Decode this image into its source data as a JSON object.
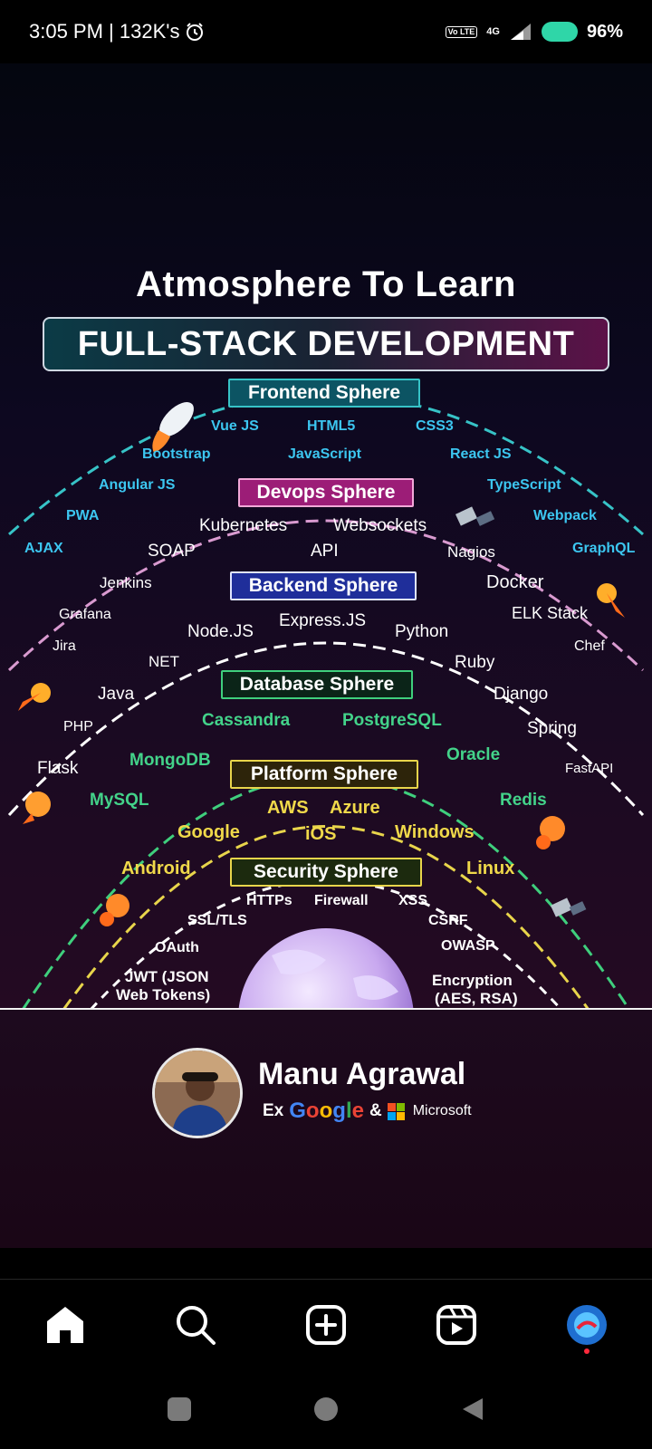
{
  "status_bar": {
    "time": "3:05 PM | 132K's",
    "volte": "Vo LTE",
    "network": "4G",
    "battery": "96%"
  },
  "post": {
    "title_line1": "Atmosphere To Learn",
    "title_line2": "FULL-STACK DEVELOPMENT",
    "spheres": {
      "frontend": {
        "label": "Frontend Sphere",
        "items": [
          "Vue JS",
          "HTML5",
          "CSS3",
          "Bootstrap",
          "JavaScript",
          "React JS",
          "Angular JS",
          "TypeScript",
          "PWA",
          "Webpack",
          "AJAX",
          "GraphQL"
        ]
      },
      "devops": {
        "label": "Devops Sphere",
        "items": [
          "Kubernetes",
          "Websockets",
          "SOAP",
          "API",
          "Nagios",
          "Jenkins",
          "Docker",
          "Grafana",
          "ELK Stack",
          "Jira",
          "Chef"
        ]
      },
      "backend": {
        "label": "Backend Sphere",
        "items": [
          "Node.JS",
          "Express.JS",
          "Python",
          "NET",
          "Ruby",
          "Java",
          "Django",
          "PHP",
          "Spring",
          "Flask",
          "FastAPI"
        ]
      },
      "database": {
        "label": "Database Sphere",
        "items": [
          "Cassandra",
          "PostgreSQL",
          "MongoDB",
          "Oracle",
          "MySQL",
          "Redis"
        ]
      },
      "platform": {
        "label": "Platform Sphere",
        "items": [
          "AWS",
          "Azure",
          "Google",
          "iOS",
          "Windows",
          "Android",
          "Linux"
        ]
      },
      "security": {
        "label": "Security Sphere",
        "items": [
          "HTTPs",
          "Firewall",
          "XSS",
          "SSL/TLS",
          "CSRF",
          "OAuth",
          "OWASP",
          "JWT (JSON",
          "Web Tokens)",
          "Encryption",
          "(AES, RSA)"
        ]
      }
    },
    "author": {
      "name": "Manu Agrawal",
      "prefix": "Ex",
      "company1": "Google",
      "amp": "&",
      "company2": "Microsoft"
    }
  },
  "bottom_nav": {
    "items": [
      "home-icon",
      "search-icon",
      "create-icon",
      "reels-icon",
      "profile-icon"
    ]
  },
  "colors": {
    "frontend": "#37c3c7",
    "devops": "#d99ad0",
    "backend": "#ffffff",
    "database": "#3fcf7d",
    "platform": "#e8d54b",
    "accent_dot": "#ff2a3c"
  }
}
